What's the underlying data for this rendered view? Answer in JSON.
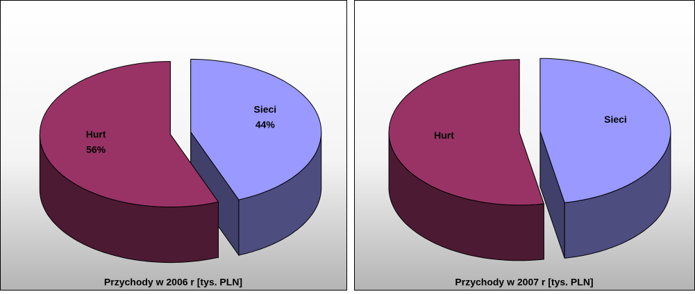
{
  "chart_data": [
    {
      "type": "pie",
      "title": "Przychody w 2006 r [tys. PLN]",
      "categories": [
        "Hurt",
        "Sieci"
      ],
      "values": [
        56,
        44
      ],
      "value_labels": [
        "56%",
        "44%"
      ],
      "colors": [
        "#993366",
        "#9999ff"
      ]
    },
    {
      "type": "pie",
      "title": "Przychody w 2007 r [tys. PLN]",
      "categories": [
        "Hurt",
        "Sieci"
      ],
      "values": [
        53,
        47
      ],
      "colors": [
        "#993366",
        "#9999ff"
      ]
    }
  ]
}
